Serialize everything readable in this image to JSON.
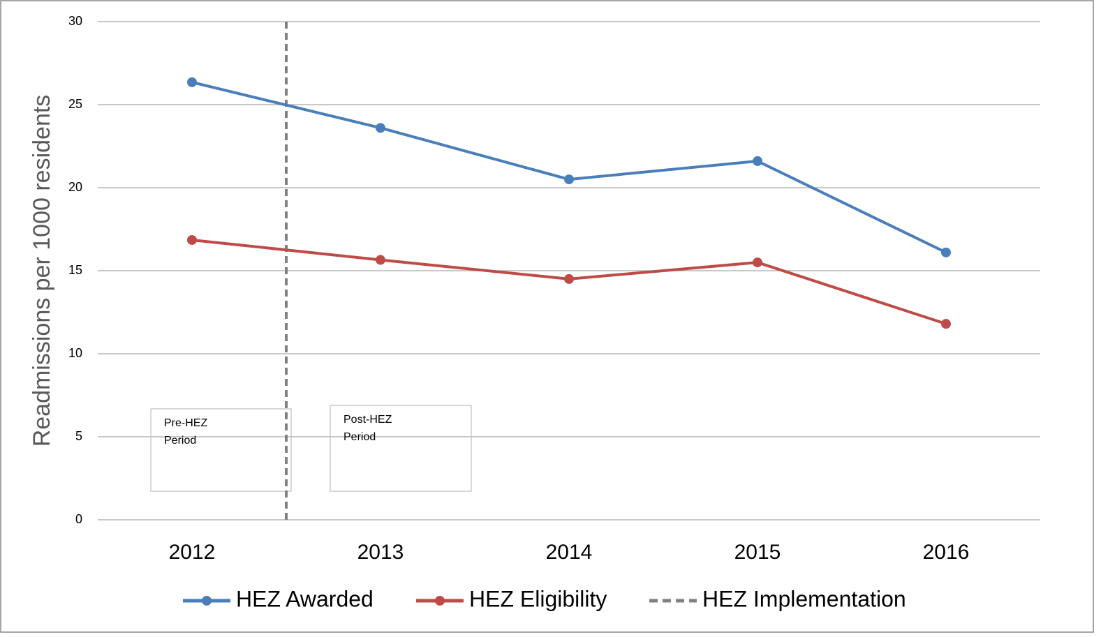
{
  "chart_data": {
    "type": "line",
    "y_label": "Readmissions per 1000 residents",
    "categories": [
      "2012",
      "2013",
      "2014",
      "2015",
      "2016"
    ],
    "series": [
      {
        "name": "HEZ Awarded",
        "color": "#4a7ebb",
        "values": [
          26.35,
          23.6,
          20.5,
          21.6,
          16.1
        ]
      },
      {
        "name": "HEZ Eligibility",
        "color": "#be4b48",
        "values": [
          16.85,
          15.65,
          14.5,
          15.5,
          11.8
        ]
      }
    ],
    "reference_line": {
      "name": "HEZ Implementation",
      "color": "#808080",
      "between": [
        0,
        1
      ]
    },
    "annotations": [
      {
        "lines": [
          "Pre-HEZ",
          "Period"
        ]
      },
      {
        "lines": [
          "Post-HEZ",
          "Period"
        ]
      }
    ],
    "ylim": [
      0,
      30
    ],
    "yticks": [
      0,
      5,
      10,
      15,
      20,
      25,
      30
    ],
    "grid": true,
    "legend": "bottom"
  }
}
